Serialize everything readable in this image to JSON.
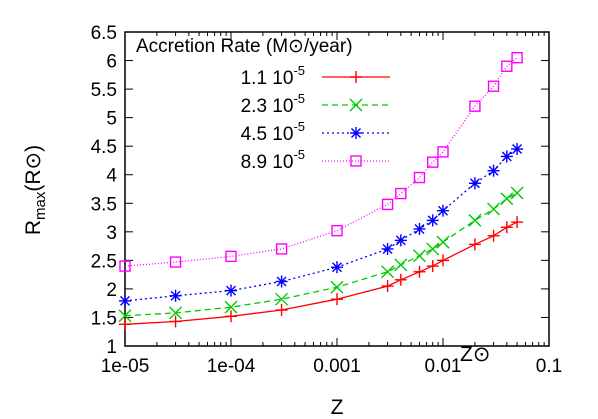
{
  "chart_data": {
    "type": "line",
    "x_scale": "log",
    "xlim": [
      1e-05,
      0.1
    ],
    "ylim": [
      1,
      6.5
    ],
    "xlabel": "Z",
    "ylabel": "R_max(R⊙)",
    "ylabel_main": "R",
    "ylabel_sub": "max",
    "ylabel_tail": "(R⊙)",
    "annotation": "Z⊙",
    "annotation_x": 0.02,
    "grid": false,
    "legend_position": "top-left",
    "legend_title": "Accretion Rate (M⊙/year)",
    "x_ticks": [
      1e-05,
      0.0001,
      0.001,
      0.01,
      0.1
    ],
    "x_tick_labels": [
      "1e-05",
      "1e-04",
      "0.001",
      "0.01",
      "0.1"
    ],
    "y_ticks": [
      1,
      1.5,
      2,
      2.5,
      3,
      3.5,
      4,
      4.5,
      5,
      5.5,
      6,
      6.5
    ],
    "y_tick_labels": [
      "1",
      "1.5",
      "2",
      "2.5",
      "3",
      "3.5",
      "4",
      "4.5",
      "5",
      "5.5",
      "6",
      "6.5"
    ],
    "x": [
      1e-05,
      3e-05,
      0.0001,
      0.0003,
      0.001,
      0.003,
      0.004,
      0.006,
      0.008,
      0.01,
      0.02,
      0.03,
      0.04,
      0.05
    ],
    "series": [
      {
        "name_base": "1.1 10",
        "name_exp": "-5",
        "color": "#ff0000",
        "marker": "plus",
        "dash": "",
        "values": [
          1.38,
          1.43,
          1.52,
          1.63,
          1.82,
          2.05,
          2.16,
          2.3,
          2.4,
          2.5,
          2.78,
          2.93,
          3.08,
          3.17
        ]
      },
      {
        "name_base": "2.3 10",
        "name_exp": "-5",
        "color": "#00cc00",
        "marker": "cross",
        "dash": "6,4",
        "values": [
          1.53,
          1.58,
          1.68,
          1.82,
          2.03,
          2.3,
          2.42,
          2.58,
          2.7,
          2.82,
          3.2,
          3.4,
          3.58,
          3.68
        ]
      },
      {
        "name_base": "4.5 10",
        "name_exp": "-5",
        "color": "#0000ff",
        "marker": "star",
        "dash": "2,3",
        "values": [
          1.79,
          1.88,
          1.97,
          2.13,
          2.38,
          2.7,
          2.85,
          3.05,
          3.2,
          3.37,
          3.85,
          4.07,
          4.32,
          4.45
        ]
      },
      {
        "name_base": "8.9 10",
        "name_exp": "-5",
        "color": "#ff00ff",
        "marker": "square",
        "dash": "1,2",
        "values": [
          2.4,
          2.47,
          2.57,
          2.7,
          3.02,
          3.48,
          3.67,
          3.95,
          4.22,
          4.4,
          5.2,
          5.55,
          5.9,
          6.05
        ]
      }
    ]
  }
}
